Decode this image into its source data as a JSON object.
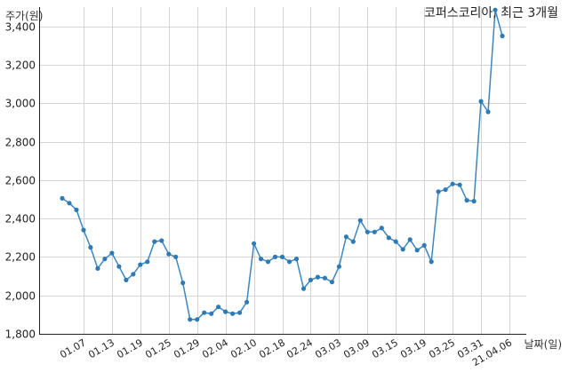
{
  "chart_data": {
    "type": "line",
    "title": "코퍼스코리아, 최근 3개월",
    "ylabel": "주가(원)",
    "xlabel": "날짜(일)",
    "ylim": [
      1800,
      3500
    ],
    "yticks": [
      1800,
      2000,
      2200,
      2400,
      2600,
      2800,
      3000,
      3200,
      3400
    ],
    "ytick_labels": [
      "1,800",
      "2,000",
      "2,200",
      "2,400",
      "2,600",
      "2,800",
      "3,000",
      "3,200",
      "3,400"
    ],
    "xtick_labels": [
      "01.07",
      "01.13",
      "01.19",
      "01.25",
      "01.29",
      "02.04",
      "02.10",
      "02.18",
      "02.24",
      "03.03",
      "03.09",
      "03.15",
      "03.19",
      "03.25",
      "03.31",
      "21.04.06"
    ],
    "xtick_index": [
      3,
      7,
      11,
      15,
      19,
      23,
      27,
      31,
      35,
      39,
      43,
      47,
      51,
      55,
      59,
      63
    ],
    "grid": true,
    "series": [
      {
        "values": [
          2505,
          2480,
          2445,
          2340,
          2250,
          2140,
          2190,
          2220,
          2150,
          2080,
          2110,
          2160,
          2175,
          2280,
          2285,
          2215,
          2200,
          2065,
          1875,
          1875,
          1910,
          1905,
          1940,
          1915,
          1905,
          1910,
          1965,
          2270,
          2190,
          2175,
          2200,
          2200,
          2175,
          2190,
          2035,
          2080,
          2095,
          2090,
          2070,
          2150,
          2305,
          2280,
          2390,
          2330,
          2330,
          2350,
          2300,
          2280,
          2240,
          2290,
          2235,
          2260,
          2175,
          2540,
          2550,
          2580,
          2575,
          2495,
          2490,
          3010,
          2955,
          3485,
          3350
        ]
      }
    ]
  }
}
